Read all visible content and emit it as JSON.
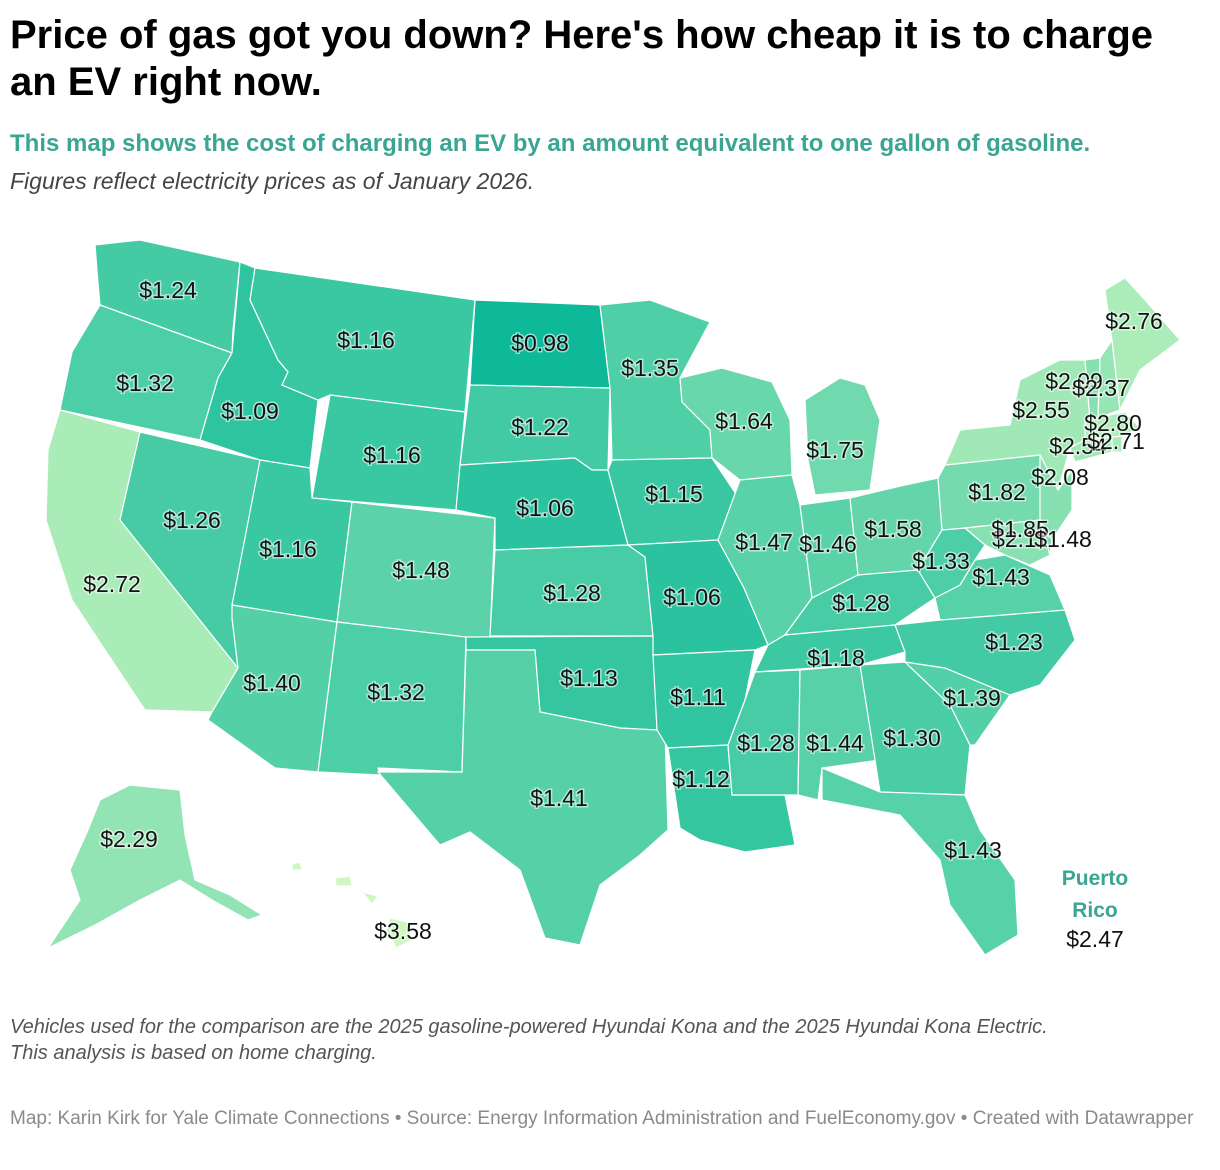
{
  "title": "Price of gas got you down? Here's how cheap it is to charge an EV right now.",
  "subtitle": "This map shows the cost of charging an EV by an amount equivalent to one gallon of gasoline.",
  "description": "Figures reflect electricity prices as of January 2026.",
  "notes": [
    "Vehicles used for the comparison are the 2025 gasoline-powered Hyundai Kona and the 2025 Hyundai Kona Electric.",
    "This analysis is based on home charging."
  ],
  "credit": "Map: Karin Kirk for Yale Climate Connections • Source: Energy Information Administration and FuelEconomy.gov • Created with Datawrapper",
  "colors": {
    "scale_low": "#0db999",
    "scale_high": "#cff8c0",
    "accent": "#3aa592",
    "border": "#ffffff"
  },
  "states": [
    {
      "state": "WA",
      "label": "$1.24"
    },
    {
      "state": "OR",
      "label": "$1.32"
    },
    {
      "state": "CA",
      "label": "$2.72"
    },
    {
      "state": "NV",
      "label": "$1.26"
    },
    {
      "state": "ID",
      "label": "$1.09"
    },
    {
      "state": "MT",
      "label": "$1.16"
    },
    {
      "state": "WY",
      "label": "$1.16"
    },
    {
      "state": "UT",
      "label": "$1.16"
    },
    {
      "state": "AZ",
      "label": "$1.40"
    },
    {
      "state": "CO",
      "label": "$1.48"
    },
    {
      "state": "NM",
      "label": "$1.32"
    },
    {
      "state": "ND",
      "label": "$0.98"
    },
    {
      "state": "SD",
      "label": "$1.22"
    },
    {
      "state": "NE",
      "label": "$1.06"
    },
    {
      "state": "KS",
      "label": "$1.28"
    },
    {
      "state": "OK",
      "label": "$1.13"
    },
    {
      "state": "TX",
      "label": "$1.41"
    },
    {
      "state": "MN",
      "label": "$1.35"
    },
    {
      "state": "IA",
      "label": "$1.15"
    },
    {
      "state": "MO",
      "label": "$1.06"
    },
    {
      "state": "AR",
      "label": "$1.11"
    },
    {
      "state": "LA",
      "label": "$1.12"
    },
    {
      "state": "WI",
      "label": "$1.64"
    },
    {
      "state": "IL",
      "label": "$1.47"
    },
    {
      "state": "MI",
      "label": "$1.75"
    },
    {
      "state": "IN",
      "label": "$1.46"
    },
    {
      "state": "OH",
      "label": "$1.58"
    },
    {
      "state": "KY",
      "label": "$1.28"
    },
    {
      "state": "TN",
      "label": "$1.18"
    },
    {
      "state": "MS",
      "label": "$1.28"
    },
    {
      "state": "AL",
      "label": "$1.44"
    },
    {
      "state": "GA",
      "label": "$1.30"
    },
    {
      "state": "FL",
      "label": "$1.43"
    },
    {
      "state": "SC",
      "label": "$1.39"
    },
    {
      "state": "NC",
      "label": "$1.23"
    },
    {
      "state": "VA",
      "label": "$1.43"
    },
    {
      "state": "WV",
      "label": "$1.33"
    },
    {
      "state": "PA",
      "label": "$1.82"
    },
    {
      "state": "NY",
      "label": "$2.55"
    },
    {
      "state": "NJ",
      "label": "$2.08"
    },
    {
      "state": "MD",
      "label": "$2.11"
    },
    {
      "state": "DE",
      "label": "$1.85"
    },
    {
      "state": "DC",
      "label": "$1.48"
    },
    {
      "state": "CT",
      "label": "$2.54"
    },
    {
      "state": "RI",
      "label": "$2.71"
    },
    {
      "state": "MA",
      "label": "$2.80"
    },
    {
      "state": "VT",
      "label": "$2.09"
    },
    {
      "state": "NH",
      "label": "$2.37"
    },
    {
      "state": "ME",
      "label": "$2.76"
    },
    {
      "state": "AK",
      "label": "$2.29"
    },
    {
      "state": "HI",
      "label": "$3.58"
    }
  ],
  "puerto_rico": {
    "name_line1": "Puerto",
    "name_line2": "Rico",
    "label": "$2.47"
  }
}
